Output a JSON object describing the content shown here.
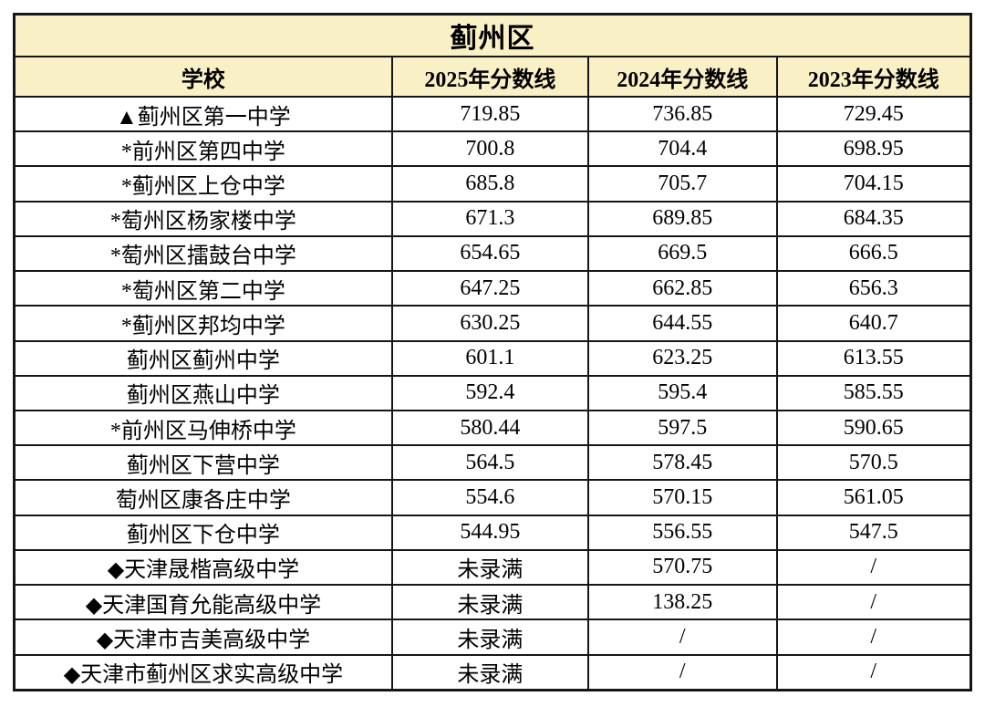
{
  "table": {
    "title": "蓟州区",
    "columns": [
      {
        "label": "学校"
      },
      {
        "label": "2025年分数线"
      },
      {
        "label": "2024年分数线"
      },
      {
        "label": "2023年分数线"
      }
    ],
    "rows": [
      {
        "school": "▲蓟州区第一中学",
        "y2025": "719.85",
        "y2024": "736.85",
        "y2023": "729.45"
      },
      {
        "school": "*前州区第四中学",
        "y2025": "700.8",
        "y2024": "704.4",
        "y2023": "698.95"
      },
      {
        "school": "*蓟州区上仓中学",
        "y2025": "685.8",
        "y2024": "705.7",
        "y2023": "704.15"
      },
      {
        "school": "*萄州区杨家楼中学",
        "y2025": "671.3",
        "y2024": "689.85",
        "y2023": "684.35"
      },
      {
        "school": "*萄州区擂鼓台中学",
        "y2025": "654.65",
        "y2024": "669.5",
        "y2023": "666.5"
      },
      {
        "school": "*萄州区第二中学",
        "y2025": "647.25",
        "y2024": "662.85",
        "y2023": "656.3"
      },
      {
        "school": "*蓟州区邦均中学",
        "y2025": "630.25",
        "y2024": "644.55",
        "y2023": "640.7"
      },
      {
        "school": "蓟州区蓟州中学",
        "y2025": "601.1",
        "y2024": "623.25",
        "y2023": "613.55"
      },
      {
        "school": "蓟州区燕山中学",
        "y2025": "592.4",
        "y2024": "595.4",
        "y2023": "585.55"
      },
      {
        "school": "*前州区马伸桥中学",
        "y2025": "580.44",
        "y2024": "597.5",
        "y2023": "590.65"
      },
      {
        "school": "蓟州区下营中学",
        "y2025": "564.5",
        "y2024": "578.45",
        "y2023": "570.5"
      },
      {
        "school": "萄州区康各庄中学",
        "y2025": "554.6",
        "y2024": "570.15",
        "y2023": "561.05"
      },
      {
        "school": "蓟州区下仓中学",
        "y2025": "544.95",
        "y2024": "556.55",
        "y2023": "547.5"
      },
      {
        "school": "◆天津晟楷高级中学",
        "y2025": "未录满",
        "y2024": "570.75",
        "y2023": "/"
      },
      {
        "school": "◆天津国育允能高级中学",
        "y2025": "未录满",
        "y2024": "138.25",
        "y2023": "/"
      },
      {
        "school": "◆天津市吉美高级中学",
        "y2025": "未录满",
        "y2024": "/",
        "y2023": "/"
      },
      {
        "school": "◆天津市蓟州区求实高级中学",
        "y2025": "未录满",
        "y2024": "/",
        "y2023": "/"
      }
    ],
    "markers": {
      "triangle": "▲",
      "asterisk": "*",
      "diamond": "◆",
      "not_full_label": "未录满",
      "no_data_label": "/"
    },
    "colors": {
      "header_bg": "#faf0c6",
      "border": "#161616",
      "text": "#000000",
      "page_bg": "#ffffff"
    }
  }
}
